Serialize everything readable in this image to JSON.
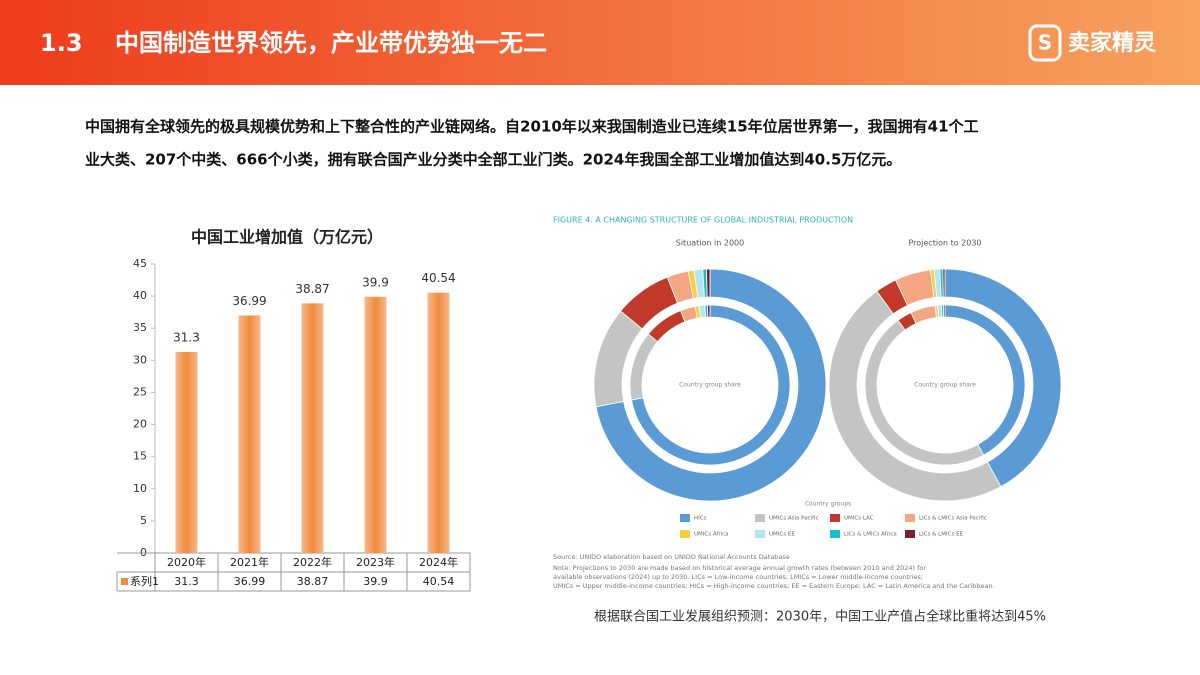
{
  "header": {
    "number": "1.3",
    "title": "中国制造世界领先，产业带优势独一无二",
    "logo": "卖家精灵"
  },
  "body_text": [
    "中国拥有全球领先的极具规模优势和上下整合性的产业链网络。自2010年以来我国制造业已连续15年位居世界第一，我国拥有41个工",
    "业大类、207个中类、666个小类，拥有联合国产业分类中全部工业门类。2024年我国全部工业增加值达到40.5万亿元。"
  ],
  "chart_data": [
    {
      "type": "bar",
      "title": "中国工业增加值（万亿元）",
      "categories": [
        "2020年",
        "2021年",
        "2022年",
        "2023年",
        "2024年"
      ],
      "series": [
        {
          "name": "系列1",
          "color": "#f08a3c",
          "values": [
            31.3,
            36.99,
            38.87,
            39.9,
            40.54
          ]
        }
      ],
      "ylim": [
        0,
        45
      ],
      "yticks": [
        0,
        5,
        10,
        15,
        20,
        25,
        30,
        35,
        40,
        45
      ],
      "grid": false
    },
    {
      "type": "donut",
      "title": "FIGURE 4. A CHANGING STRUCTURE OF GLOBAL INDUSTRIAL PRODUCTION",
      "legend_title": "Country groups",
      "groups": [
        {
          "name": "HICs",
          "color": "#5b9bd5"
        },
        {
          "name": "UMICs Asia Pacific",
          "color": "#c4c4c4"
        },
        {
          "name": "UMICs LAC",
          "color": "#c0392b"
        },
        {
          "name": "LICs & LMICs Asia Pacific",
          "color": "#f4a582"
        },
        {
          "name": "UMICs Africa",
          "color": "#f5d03b"
        },
        {
          "name": "UMICs EE",
          "color": "#b3e5f0"
        },
        {
          "name": "LICs & LMICs Africa",
          "color": "#17becf"
        },
        {
          "name": "LICs & LMICs EE",
          "color": "#7b1f2b"
        }
      ],
      "donuts": [
        {
          "title": "Situation in 2000",
          "center_label": "Country group share",
          "values": [
            72,
            14,
            8,
            3,
            0.8,
            1.2,
            0.5,
            0.5
          ]
        },
        {
          "title": "Projection to 2030",
          "center_label": "Country group share",
          "values": [
            42,
            48,
            3,
            5,
            0.5,
            0.8,
            0.4,
            0.3
          ]
        }
      ],
      "source": "Source: UNIDO elaboration based on UNIDO National Accounts Database",
      "note": [
        "Note: Projections to 2030 are made based on historical average annual growth rates (between 2010 and 2024) for",
        "available observations (2024) up to 2030. LICs = Low-income countries; LMICs = Lower middle-income countries;",
        "UMICs = Upper middle-income countries; HICs = High-income countries; EE = Eastern Europe; LAC = Latin America and the Caribbean."
      ]
    }
  ],
  "caption": "根据联合国工业发展组织预测：2030年，中国工业产值占全球比重将达到45%"
}
